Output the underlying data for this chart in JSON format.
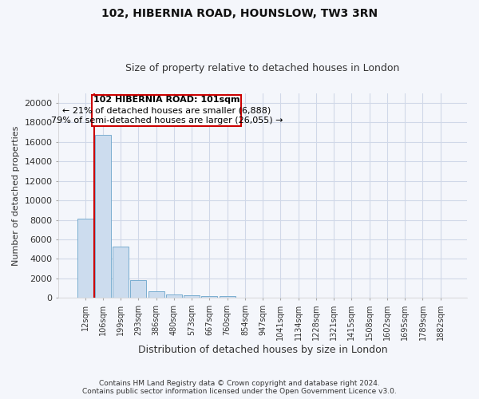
{
  "title_line1": "102, HIBERNIA ROAD, HOUNSLOW, TW3 3RN",
  "title_line2": "Size of property relative to detached houses in London",
  "xlabel": "Distribution of detached houses by size in London",
  "ylabel": "Number of detached properties",
  "bar_color": "#ccdcee",
  "bar_edge_color": "#7aaed0",
  "grid_color": "#d0d8e8",
  "background_color": "#f4f6fb",
  "annotation_box_color": "white",
  "annotation_box_edge": "#cc0000",
  "vline_color": "#cc0000",
  "footer_line1": "Contains HM Land Registry data © Crown copyright and database right 2024.",
  "footer_line2": "Contains public sector information licensed under the Open Government Licence v3.0.",
  "annotation_title": "102 HIBERNIA ROAD: 101sqm",
  "annotation_line1": "← 21% of detached houses are smaller (6,888)",
  "annotation_line2": "79% of semi-detached houses are larger (26,055) →",
  "categories": [
    "12sqm",
    "106sqm",
    "199sqm",
    "293sqm",
    "386sqm",
    "480sqm",
    "573sqm",
    "667sqm",
    "760sqm",
    "854sqm",
    "947sqm",
    "1041sqm",
    "1134sqm",
    "1228sqm",
    "1321sqm",
    "1415sqm",
    "1508sqm",
    "1602sqm",
    "1695sqm",
    "1789sqm",
    "1882sqm"
  ],
  "bar_heights": [
    8100,
    16700,
    5300,
    1850,
    700,
    350,
    280,
    200,
    190,
    0,
    0,
    0,
    0,
    0,
    0,
    0,
    0,
    0,
    0,
    0,
    0
  ],
  "vline_x": 0.51,
  "ylim": [
    0,
    21000
  ],
  "yticks": [
    0,
    2000,
    4000,
    6000,
    8000,
    10000,
    12000,
    14000,
    16000,
    18000,
    20000
  ],
  "figsize": [
    6.0,
    5.0
  ],
  "dpi": 100
}
